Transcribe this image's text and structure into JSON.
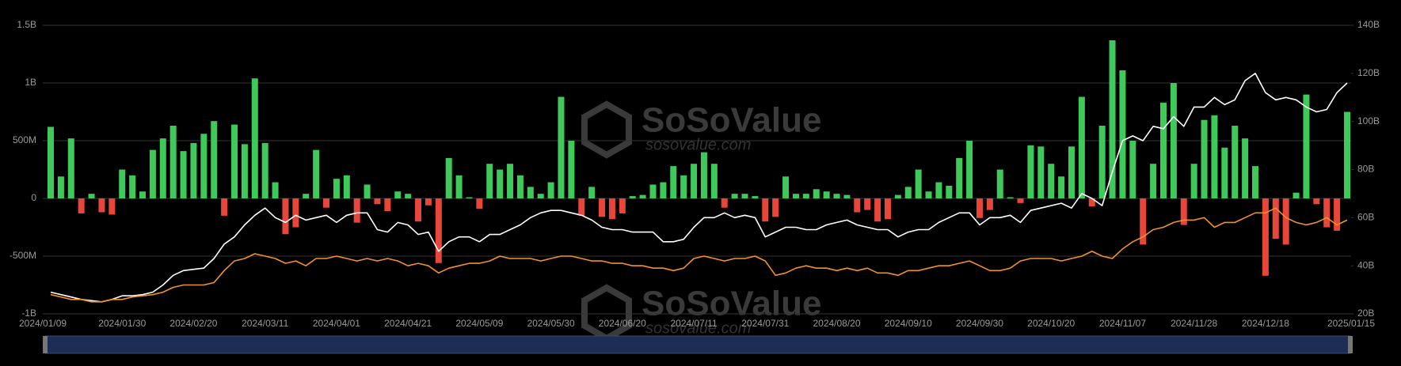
{
  "chart_data": {
    "type": "bar",
    "watermark": "SoSoValue",
    "watermark_url": "sosovalue.com",
    "categories": [
      "2024/01/09",
      null,
      null,
      null,
      null,
      null,
      null,
      "2024/01/30",
      null,
      null,
      null,
      null,
      null,
      null,
      "2024/02/20",
      null,
      null,
      null,
      null,
      null,
      null,
      "2024/03/11",
      null,
      null,
      null,
      null,
      null,
      null,
      "2024/04/01",
      null,
      null,
      null,
      null,
      null,
      null,
      "2024/04/21",
      null,
      null,
      null,
      null,
      null,
      null,
      "2024/05/09",
      null,
      null,
      null,
      null,
      null,
      null,
      "2024/05/30",
      null,
      null,
      null,
      null,
      null,
      null,
      "2024/06/20",
      null,
      null,
      null,
      null,
      null,
      null,
      "2024/07/11",
      null,
      null,
      null,
      null,
      null,
      null,
      "2024/07/31",
      null,
      null,
      null,
      null,
      null,
      null,
      "2024/08/20",
      null,
      null,
      null,
      null,
      null,
      null,
      "2024/09/10",
      null,
      null,
      null,
      null,
      null,
      null,
      "2024/09/30",
      null,
      null,
      null,
      null,
      null,
      null,
      "2024/10/20",
      null,
      null,
      null,
      null,
      null,
      null,
      "2024/11/07",
      null,
      null,
      null,
      null,
      null,
      null,
      "2024/11/28",
      null,
      null,
      null,
      null,
      null,
      null,
      "2024/12/18",
      null,
      null,
      null,
      null,
      null,
      null,
      null,
      "2025/01/15"
    ],
    "series": [
      {
        "type": "bar",
        "positive_color": "#3ec95a",
        "negative_color": "#e8463a",
        "values": [
          620,
          190,
          520,
          -130,
          40,
          -120,
          -140,
          250,
          200,
          60,
          420,
          520,
          630,
          410,
          480,
          560,
          670,
          -150,
          640,
          470,
          1040,
          480,
          140,
          -310,
          -250,
          40,
          420,
          -80,
          170,
          200,
          -210,
          120,
          -50,
          -110,
          60,
          40,
          -200,
          -60,
          -560,
          350,
          200,
          10,
          -90,
          300,
          250,
          300,
          200,
          100,
          40,
          140,
          880,
          500,
          -150,
          100,
          -160,
          -180,
          -130,
          20,
          30,
          120,
          140,
          280,
          200,
          300,
          400,
          300,
          -80,
          40,
          40,
          20,
          -200,
          -160,
          190,
          40,
          40,
          80,
          60,
          40,
          30,
          -120,
          -100,
          -200,
          -180,
          30,
          100,
          250,
          60,
          140,
          110,
          350,
          500,
          -170,
          -100,
          250,
          10,
          -40,
          460,
          450,
          300,
          190,
          450,
          880,
          -70,
          630,
          1370,
          1110,
          500,
          -400,
          300,
          830,
          1000,
          -230,
          300,
          680,
          720,
          440,
          630,
          520,
          280,
          -670,
          -350,
          -400,
          50,
          900,
          -50,
          -250,
          -280,
          750
        ]
      },
      {
        "type": "line",
        "axis": "y2",
        "color": "#ffffff",
        "values": [
          29,
          28,
          27,
          26,
          25.5,
          25,
          26,
          27.5,
          27.5,
          28,
          29,
          32,
          36,
          38,
          38.5,
          39,
          43,
          49,
          52,
          57,
          61,
          64,
          60,
          58,
          61,
          59,
          60,
          61,
          58,
          61,
          62,
          62,
          55,
          54,
          58,
          57,
          53,
          54,
          46,
          50,
          52,
          52,
          50,
          53,
          53,
          55,
          57,
          60,
          62,
          63,
          63,
          62,
          61,
          59,
          56,
          55,
          55,
          54,
          54,
          54,
          50,
          50,
          51,
          56,
          60,
          60,
          62,
          60,
          61,
          60,
          52,
          54,
          56,
          56,
          55,
          55,
          57,
          58,
          59,
          57,
          56,
          55,
          55,
          52,
          54,
          55,
          55,
          58,
          60,
          62,
          62,
          57,
          60,
          60,
          61,
          58,
          63,
          64,
          65,
          66,
          64,
          70,
          68,
          65,
          79,
          92,
          94,
          92,
          98,
          97,
          102,
          98,
          106,
          106,
          110,
          107,
          109,
          117,
          120,
          112,
          109,
          110,
          109,
          106,
          104,
          105,
          112,
          116
        ]
      },
      {
        "type": "line",
        "axis": "y2",
        "color": "#f0922b",
        "values": [
          28,
          27,
          26,
          26,
          25,
          25,
          26,
          26,
          27,
          27.5,
          28,
          29,
          31,
          32,
          32,
          32,
          33,
          38,
          42,
          43,
          45,
          44,
          43,
          41,
          42,
          40,
          43,
          43,
          44,
          43,
          42,
          43,
          42,
          43,
          42,
          40,
          41,
          40,
          37,
          39,
          40,
          41,
          41,
          42,
          44,
          43,
          43,
          43,
          42,
          43,
          44,
          44,
          43,
          42,
          42,
          41,
          41,
          40,
          40,
          39,
          39,
          38,
          39,
          43,
          44,
          43,
          42,
          43,
          43,
          44,
          42,
          36,
          37,
          39,
          40,
          39,
          39,
          38,
          39,
          38,
          39,
          37,
          37,
          36,
          38,
          38,
          39,
          40,
          40,
          41,
          42,
          40,
          38,
          38,
          39,
          42,
          43,
          43,
          43,
          42,
          43,
          44,
          46,
          44,
          43,
          47,
          50,
          52,
          55,
          56,
          58,
          59,
          59,
          60,
          56,
          58,
          58,
          60,
          62,
          62,
          64,
          60,
          58,
          57,
          58,
          60,
          57,
          59
        ]
      }
    ],
    "ylim": [
      -1000,
      1500
    ],
    "yticks": [
      {
        "value": -1000,
        "label": "-1B"
      },
      {
        "value": -500,
        "label": "-500M"
      },
      0,
      {
        "value": 500,
        "label": "500M"
      },
      {
        "value": 1000,
        "label": "1B"
      },
      {
        "value": 1500,
        "label": "1.5B"
      }
    ],
    "y2lim": [
      20,
      140
    ],
    "y2ticks": [
      {
        "value": 20,
        "label": "20B"
      },
      {
        "value": 40,
        "label": "40B"
      },
      {
        "value": 60,
        "label": "60B"
      },
      {
        "value": 80,
        "label": "80B"
      },
      {
        "value": 100,
        "label": "100B"
      },
      {
        "value": 120,
        "label": "120B"
      },
      {
        "value": 140,
        "label": "140B"
      }
    ],
    "grid": true
  }
}
